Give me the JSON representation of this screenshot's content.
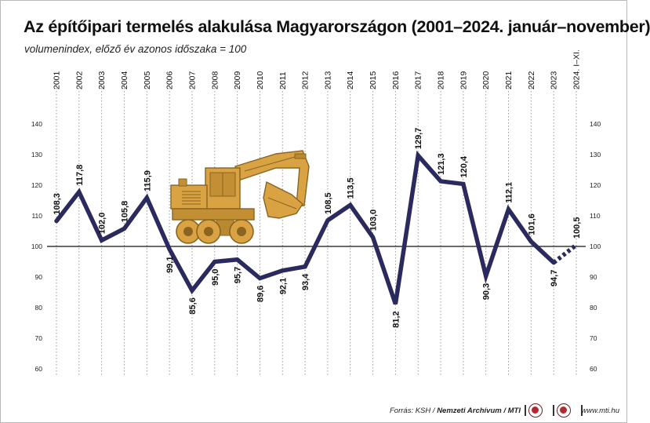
{
  "header": {
    "title": "Az építőipari termelés alakulása Magyarországon (2001–2024. január–november)",
    "subtitle": "volumenindex, előző év azonos időszaka = 100"
  },
  "footer": {
    "source_prefix": "Forrás: KSH / ",
    "source_bold": "Nemzeti Archívum / MTI",
    "website": "www.mti.hu"
  },
  "chart_data": {
    "type": "line",
    "categories": [
      "2001",
      "2002",
      "2003",
      "2004",
      "2005",
      "2006",
      "2007",
      "2008",
      "2009",
      "2010",
      "2011",
      "2012",
      "2013",
      "2014",
      "2015",
      "2016",
      "2017",
      "2018",
      "2019",
      "2020",
      "2021",
      "2022",
      "2023",
      "2024. I–XI."
    ],
    "values": [
      108.3,
      117.8,
      102.0,
      105.8,
      115.9,
      99.1,
      85.6,
      95.0,
      95.7,
      89.6,
      92.1,
      93.4,
      108.5,
      113.5,
      103.0,
      81.2,
      129.7,
      121.3,
      120.4,
      90.3,
      112.1,
      101.6,
      94.7,
      100.5
    ],
    "value_labels": [
      "108,3",
      "117,8",
      "102,0",
      "105,8",
      "115,9",
      "99,1",
      "85,6",
      "95,0",
      "95,7",
      "89,6",
      "92,1",
      "93,4",
      "108,5",
      "113,5",
      "103,0",
      "81,2",
      "129,7",
      "121,3",
      "120,4",
      "90,3",
      "112,1",
      "101,6",
      "94,7",
      "100,5"
    ],
    "label_position": [
      "above",
      "above",
      "above",
      "above",
      "above",
      "below",
      "below",
      "below",
      "below",
      "below",
      "below",
      "below",
      "above",
      "above",
      "above",
      "below",
      "above",
      "above",
      "above",
      "below",
      "above",
      "above",
      "below",
      "above"
    ],
    "yticks": [
      60,
      70,
      80,
      90,
      100,
      110,
      120,
      130,
      140
    ],
    "ylim": [
      60,
      140
    ],
    "reference_line": 100,
    "last_segment_dashed": true,
    "grid": "vertical dotted",
    "colors": {
      "line": "#2b2a5e",
      "reference": "#111111",
      "grid": "#9a9a9a",
      "excavator_body": "#d9a344",
      "excavator_dark": "#8a6420"
    }
  }
}
